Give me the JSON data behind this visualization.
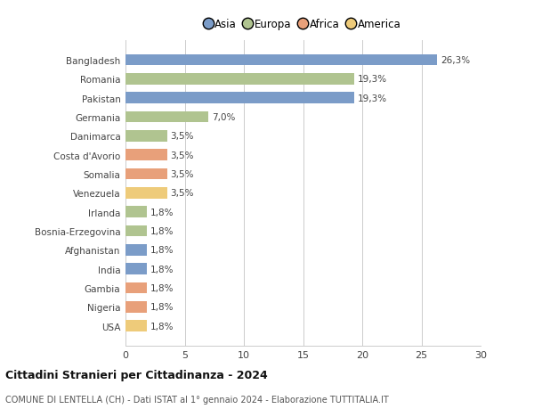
{
  "countries": [
    "Bangladesh",
    "Romania",
    "Pakistan",
    "Germania",
    "Danimarca",
    "Costa d'Avorio",
    "Somalia",
    "Venezuela",
    "Irlanda",
    "Bosnia-Erzegovina",
    "Afghanistan",
    "India",
    "Gambia",
    "Nigeria",
    "USA"
  ],
  "values": [
    26.3,
    19.3,
    19.3,
    7.0,
    3.5,
    3.5,
    3.5,
    3.5,
    1.8,
    1.8,
    1.8,
    1.8,
    1.8,
    1.8,
    1.8
  ],
  "continents": [
    "Asia",
    "Europa",
    "Asia",
    "Europa",
    "Europa",
    "Africa",
    "Africa",
    "America",
    "Europa",
    "Europa",
    "Asia",
    "Asia",
    "Africa",
    "Africa",
    "America"
  ],
  "labels": [
    "26,3%",
    "19,3%",
    "19,3%",
    "7,0%",
    "3,5%",
    "3,5%",
    "3,5%",
    "3,5%",
    "1,8%",
    "1,8%",
    "1,8%",
    "1,8%",
    "1,8%",
    "1,8%",
    "1,8%"
  ],
  "colors": {
    "Asia": "#7b9cc8",
    "Europa": "#b0c490",
    "Africa": "#e8a07a",
    "America": "#eecb7a"
  },
  "legend_order": [
    "Asia",
    "Europa",
    "Africa",
    "America"
  ],
  "title": "Cittadini Stranieri per Cittadinanza - 2024",
  "subtitle": "COMUNE DI LENTELLA (CH) - Dati ISTAT al 1° gennaio 2024 - Elaborazione TUTTITALIA.IT",
  "xlim": [
    0,
    30
  ],
  "xticks": [
    0,
    5,
    10,
    15,
    20,
    25,
    30
  ],
  "background_color": "#ffffff",
  "grid_color": "#cccccc",
  "bar_height": 0.6
}
